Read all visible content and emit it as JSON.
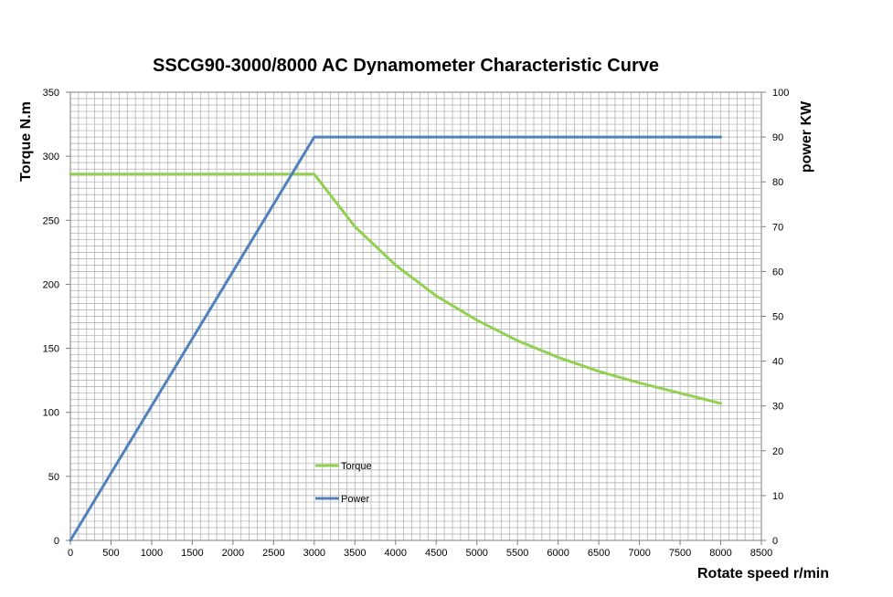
{
  "chart_data": {
    "type": "line",
    "title": "SSCG90-3000/8000  AC Dynamometer Characteristic Curve",
    "xlabel": "Rotate speed r/min",
    "ylabel": "Torque N.m",
    "y2label": "power KW",
    "xlim": [
      0,
      8500
    ],
    "ylim": [
      0,
      350
    ],
    "y2lim": [
      0,
      100
    ],
    "x_ticks": [
      "0",
      "500",
      "1000",
      "1500",
      "2000",
      "2500",
      "3000",
      "3500",
      "4000",
      "4500",
      "5000",
      "5500",
      "6000",
      "6500",
      "7000",
      "7500",
      "8000",
      "8500"
    ],
    "y_ticks": [
      "0",
      "50",
      "100",
      "150",
      "200",
      "250",
      "300",
      "350"
    ],
    "y2_ticks": [
      "0",
      "10",
      "20",
      "30",
      "40",
      "50",
      "60",
      "70",
      "80",
      "90",
      "100"
    ],
    "grid": true,
    "legend_position": "bottom-center",
    "series": [
      {
        "name": "Torque",
        "axis": "left",
        "color": "#92d050",
        "x": [
          0,
          500,
          1000,
          1500,
          2000,
          2500,
          3000,
          3500,
          4000,
          4500,
          5000,
          5500,
          6000,
          6500,
          7000,
          7500,
          8000
        ],
        "values": [
          286,
          286,
          286,
          286,
          286,
          286,
          286,
          245,
          215,
          191,
          172,
          156,
          143,
          132,
          123,
          115,
          107
        ]
      },
      {
        "name": "Power",
        "axis": "right",
        "color": "#4f81bd",
        "x": [
          0,
          3000,
          3500,
          4000,
          4500,
          5000,
          5500,
          6000,
          6500,
          7000,
          7500,
          8000
        ],
        "values": [
          0,
          90,
          90,
          90,
          90,
          90,
          90,
          90,
          90,
          90,
          90,
          90
        ]
      }
    ]
  }
}
